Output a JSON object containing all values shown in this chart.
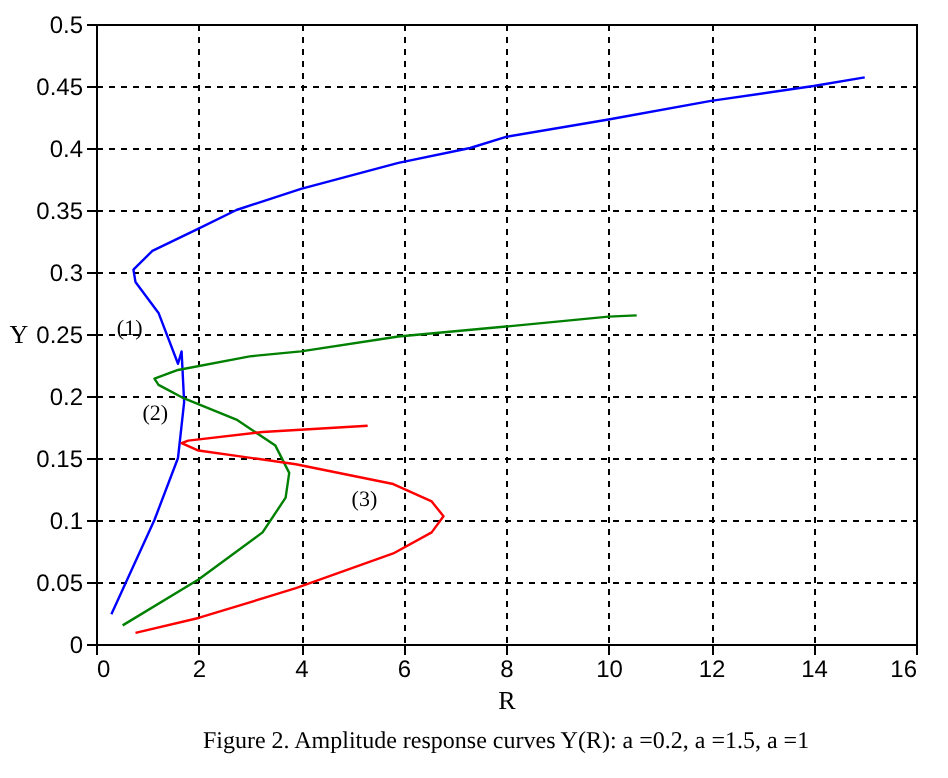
{
  "chart_data": {
    "type": "line",
    "xlabel": "R",
    "ylabel": "Y",
    "xlim": [
      0,
      16
    ],
    "ylim": [
      0,
      0.5
    ],
    "xticks": [
      0,
      2,
      4,
      6,
      8,
      10,
      12,
      14,
      16
    ],
    "yticks": [
      0,
      0.05,
      0.1,
      0.15,
      0.2,
      0.25,
      0.3,
      0.35,
      0.4,
      0.45,
      0.5
    ],
    "grid": true,
    "legend": false,
    "line_style": "solid",
    "marker": "none",
    "series": [
      {
        "color": "#0000ff",
        "x": [
          0.3,
          1.14,
          1.6,
          1.72,
          1.67,
          1.6,
          1.22,
          0.77,
          0.73,
          1.1,
          2.0,
          2.74,
          4.0,
          5.9,
          7.3,
          8.0,
          10.0,
          12.0,
          14.0,
          15.0
        ],
        "values": [
          0.024,
          0.1,
          0.15,
          0.195,
          0.236,
          0.226,
          0.267,
          0.292,
          0.302,
          0.317,
          0.335,
          0.35,
          0.367,
          0.388,
          0.4,
          0.409,
          0.423,
          0.438,
          0.45,
          0.457
        ]
      },
      {
        "color": "#008000",
        "x": [
          0.52,
          2.0,
          3.25,
          3.7,
          3.77,
          3.5,
          2.74,
          1.72,
          1.22,
          1.14,
          1.6,
          3.0,
          4.0,
          5.9,
          8.0,
          10.0,
          10.55
        ],
        "values": [
          0.015,
          0.052,
          0.09,
          0.118,
          0.138,
          0.16,
          0.181,
          0.198,
          0.209,
          0.214,
          0.221,
          0.232,
          0.236,
          0.248,
          0.256,
          0.264,
          0.265
        ]
      },
      {
        "color": "#ff0000",
        "x": [
          0.77,
          2.0,
          3.9,
          5.8,
          6.55,
          6.78,
          6.55,
          5.8,
          3.9,
          2.0,
          1.67,
          1.8,
          3.25,
          5.3
        ],
        "values": [
          0.009,
          0.021,
          0.045,
          0.073,
          0.09,
          0.103,
          0.115,
          0.129,
          0.145,
          0.156,
          0.162,
          0.164,
          0.171,
          0.176
        ]
      }
    ],
    "annotations": [
      {
        "text": "(1)",
        "x": 1.22,
        "y": 0.267
      },
      {
        "text": "(2)",
        "x": 1.72,
        "y": 0.198
      },
      {
        "text": "(3)",
        "x": 5.8,
        "y": 0.129
      },
      "Figure 2. Amplitude response curves Y(R): a =0.2, a =1.5, a =1"
    ]
  }
}
